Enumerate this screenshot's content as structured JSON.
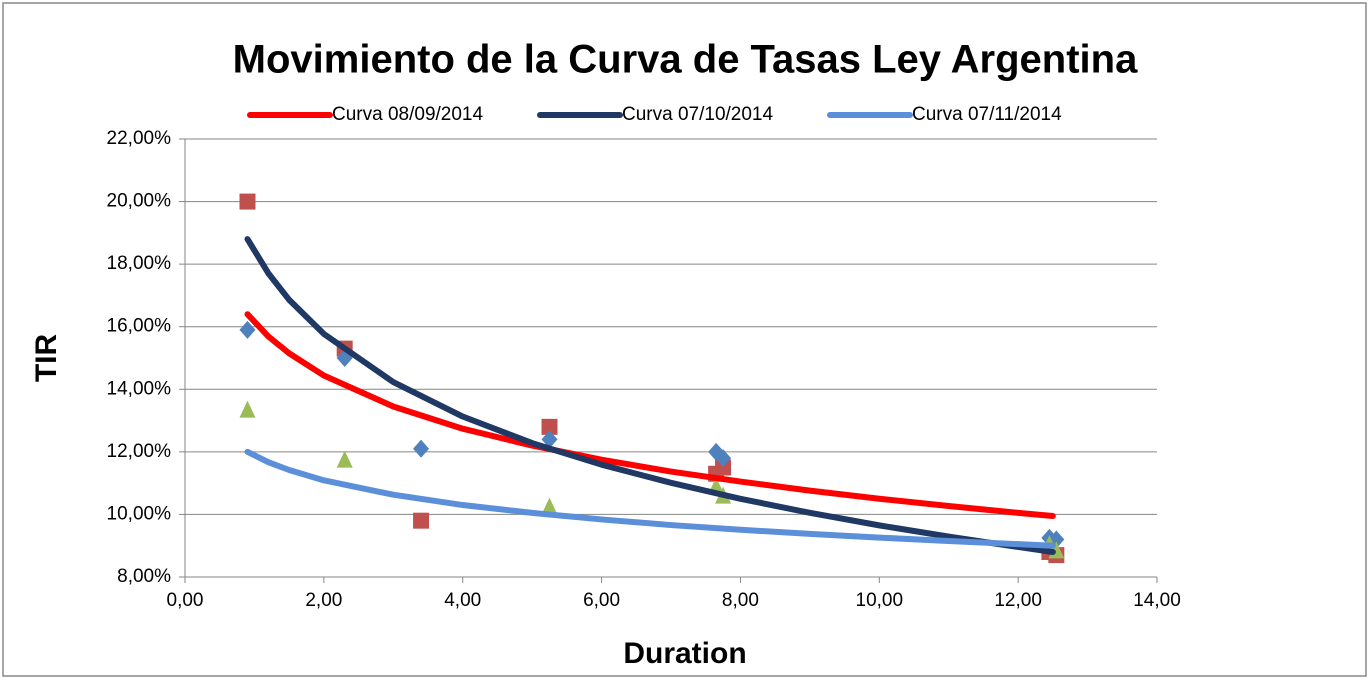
{
  "chart_data": {
    "type": "scatter",
    "title": "Movimiento de la Curva de Tasas Ley Argentina",
    "x_label": "Duration",
    "y_label": "TIR",
    "xlim": [
      0,
      14
    ],
    "ylim": [
      8,
      22
    ],
    "xticks": [
      {
        "value": 0,
        "label": "0,00"
      },
      {
        "value": 2,
        "label": "2,00"
      },
      {
        "value": 4,
        "label": "4,00"
      },
      {
        "value": 6,
        "label": "6,00"
      },
      {
        "value": 8,
        "label": "8,00"
      },
      {
        "value": 10,
        "label": "10,00"
      },
      {
        "value": 12,
        "label": "12,00"
      },
      {
        "value": 14,
        "label": "14,00"
      }
    ],
    "yticks": [
      {
        "value": 8,
        "label": "8,00%"
      },
      {
        "value": 10,
        "label": "10,00%"
      },
      {
        "value": 12,
        "label": "12,00%"
      },
      {
        "value": 14,
        "label": "14,00%"
      },
      {
        "value": 16,
        "label": "16,00%"
      },
      {
        "value": 18,
        "label": "18,00%"
      },
      {
        "value": 20,
        "label": "20,00%"
      },
      {
        "value": 22,
        "label": "22,00%"
      }
    ],
    "grid": true,
    "legend": "top",
    "series": [
      {
        "name": "Curva 08/09/2014",
        "color": "#ff0000",
        "x": [
          0.9,
          1.2,
          1.5,
          2,
          3,
          4,
          5,
          6,
          7,
          8,
          9,
          10,
          11,
          12,
          12.5
        ],
        "values": [
          16.4,
          15.69,
          15.15,
          14.44,
          13.45,
          12.74,
          12.2,
          11.75,
          11.37,
          11.05,
          10.76,
          10.5,
          10.27,
          10.05,
          9.95
        ]
      },
      {
        "name": "Curva 07/10/2014",
        "color": "#1f3864",
        "x": [
          0.9,
          1.2,
          1.5,
          2,
          3,
          4,
          5,
          6,
          7,
          8,
          9,
          10,
          11,
          12,
          12.5
        ],
        "values": [
          18.8,
          17.71,
          16.86,
          15.77,
          14.23,
          13.13,
          12.28,
          11.59,
          11.01,
          10.5,
          10.05,
          9.65,
          9.29,
          8.96,
          8.8
        ]
      },
      {
        "name": "Curva 07/11/2014",
        "color": "#5b8fd9",
        "x": [
          0.9,
          1.2,
          1.5,
          2,
          3,
          4,
          5,
          6,
          7,
          8,
          9,
          10,
          11,
          12,
          12.5
        ],
        "values": [
          12.0,
          11.67,
          11.42,
          11.09,
          10.63,
          10.3,
          10.05,
          9.84,
          9.66,
          9.51,
          9.38,
          9.26,
          9.15,
          9.05,
          9.0
        ]
      }
    ],
    "markers": [
      {
        "marker": "square",
        "color": "#c0504d",
        "x": [
          0.9,
          2.3,
          3.4,
          5.25,
          7.65,
          7.75,
          12.45,
          12.55
        ],
        "values": [
          20.0,
          15.3,
          9.8,
          12.8,
          11.3,
          11.5,
          8.8,
          8.7
        ]
      },
      {
        "marker": "diamond",
        "color": "#4f81bd",
        "x": [
          0.9,
          2.3,
          3.4,
          5.25,
          7.65,
          7.75,
          12.45,
          12.55
        ],
        "values": [
          15.9,
          15.0,
          12.1,
          12.4,
          12.0,
          11.8,
          9.25,
          9.2
        ]
      },
      {
        "marker": "triangle",
        "color": "#9bbb59",
        "x": [
          0.9,
          2.3,
          5.25,
          7.65,
          7.75,
          12.45,
          12.55
        ],
        "values": [
          13.35,
          11.75,
          10.25,
          10.9,
          10.6,
          9.05,
          8.85
        ]
      }
    ]
  }
}
